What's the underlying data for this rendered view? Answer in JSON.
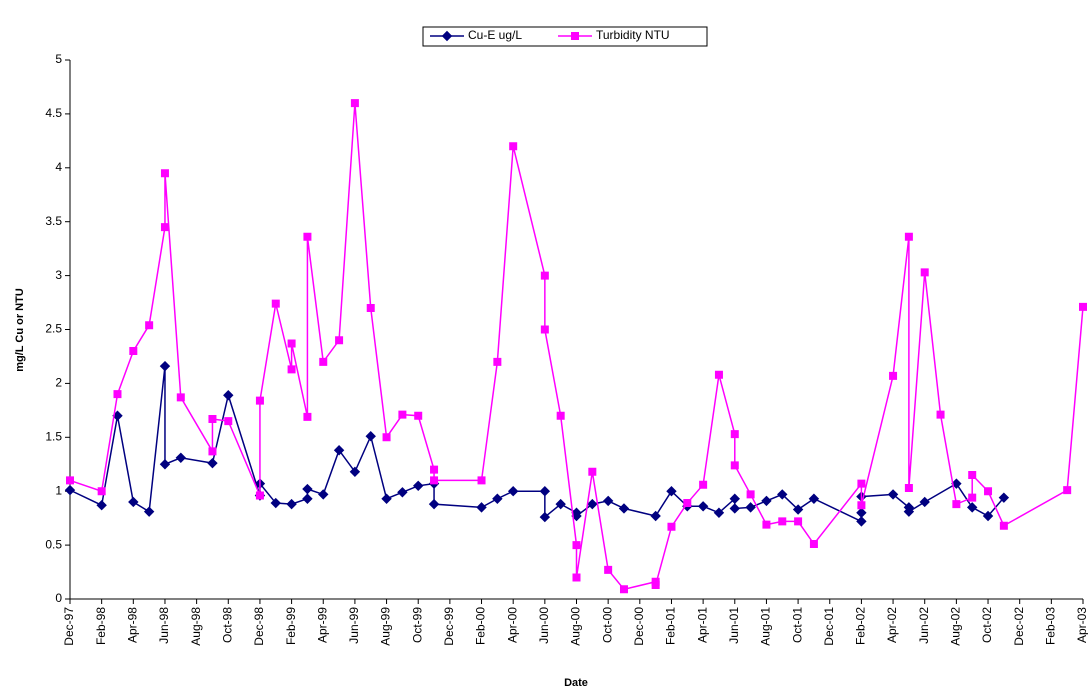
{
  "chart_data": {
    "type": "line",
    "y_label": "mg/L Cu or NTU",
    "x_label": "Date",
    "xlim": [
      "1997-12",
      "2003-04"
    ],
    "xticks": [
      {
        "value": "1997-12",
        "label": "Dec-97"
      },
      {
        "value": "1998-02",
        "label": "Feb-98"
      },
      {
        "value": "1998-04",
        "label": "Apr-98"
      },
      {
        "value": "1998-06",
        "label": "Jun-98"
      },
      {
        "value": "1998-08",
        "label": "Aug-98"
      },
      {
        "value": "1998-10",
        "label": "Oct-98"
      },
      {
        "value": "1998-12",
        "label": "Dec-98"
      },
      {
        "value": "1999-02",
        "label": "Feb-99"
      },
      {
        "value": "1999-04",
        "label": "Apr-99"
      },
      {
        "value": "1999-06",
        "label": "Jun-99"
      },
      {
        "value": "1999-08",
        "label": "Aug-99"
      },
      {
        "value": "1999-10",
        "label": "Oct-99"
      },
      {
        "value": "1999-12",
        "label": "Dec-99"
      },
      {
        "value": "2000-02",
        "label": "Feb-00"
      },
      {
        "value": "2000-04",
        "label": "Apr-00"
      },
      {
        "value": "2000-06",
        "label": "Jun-00"
      },
      {
        "value": "2000-08",
        "label": "Aug-00"
      },
      {
        "value": "2000-10",
        "label": "Oct-00"
      },
      {
        "value": "2000-12",
        "label": "Dec-00"
      },
      {
        "value": "2001-02",
        "label": "Feb-01"
      },
      {
        "value": "2001-04",
        "label": "Apr-01"
      },
      {
        "value": "2001-06",
        "label": "Jun-01"
      },
      {
        "value": "2001-08",
        "label": "Aug-01"
      },
      {
        "value": "2001-10",
        "label": "Oct-01"
      },
      {
        "value": "2001-12",
        "label": "Dec-01"
      },
      {
        "value": "2002-02",
        "label": "Feb-02"
      },
      {
        "value": "2002-04",
        "label": "Apr-02"
      },
      {
        "value": "2002-06",
        "label": "Jun-02"
      },
      {
        "value": "2002-08",
        "label": "Aug-02"
      },
      {
        "value": "2002-10",
        "label": "Oct-02"
      },
      {
        "value": "2002-12",
        "label": "Dec-02"
      },
      {
        "value": "2003-02",
        "label": "Feb-03"
      },
      {
        "value": "2003-04",
        "label": "Apr-03"
      }
    ],
    "ylim": [
      0,
      5
    ],
    "yticks": [
      0,
      0.5,
      1,
      1.5,
      2,
      2.5,
      3,
      3.5,
      4,
      4.5,
      5
    ],
    "grid": false,
    "legend": "top",
    "series": [
      {
        "name": "Cu-E ug/L",
        "color": "#000080",
        "marker": "diamond",
        "x": [
          "1997-12",
          "1998-02",
          "1998-03",
          "1998-04",
          "1998-05",
          "1998-06",
          "1998-06",
          "1998-07",
          "1998-09",
          "1998-10",
          "1998-12",
          "1998-12",
          "1999-01",
          "1999-02",
          "1999-03",
          "1999-03",
          "1999-04",
          "1999-05",
          "1999-06",
          "1999-07",
          "1999-08",
          "1999-09",
          "1999-10",
          "1999-11",
          "1999-11",
          "2000-02",
          "2000-03",
          "2000-04",
          "2000-06",
          "2000-06",
          "2000-07",
          "2000-08",
          "2000-08",
          "2000-09",
          "2000-10",
          "2000-11",
          "2001-01",
          "2001-02",
          "2001-03",
          "2001-04",
          "2001-05",
          "2001-06",
          "2001-06",
          "2001-07",
          "2001-08",
          "2001-09",
          "2001-10",
          "2001-11",
          "2002-02",
          "2002-02",
          "2002-02",
          "2002-04",
          "2002-05",
          "2002-05",
          "2002-06",
          "2002-08",
          "2002-09",
          "2002-10",
          "2002-11"
        ],
        "values": [
          1.01,
          0.87,
          1.7,
          0.9,
          0.81,
          2.16,
          1.25,
          1.31,
          1.26,
          1.89,
          0.96,
          1.07,
          0.89,
          0.88,
          0.93,
          1.02,
          0.97,
          1.38,
          1.18,
          1.51,
          0.93,
          0.99,
          1.05,
          1.07,
          0.88,
          0.85,
          0.93,
          1.0,
          1.0,
          0.76,
          0.88,
          0.8,
          0.77,
          0.88,
          0.91,
          0.84,
          0.77,
          1.0,
          0.86,
          0.86,
          0.8,
          0.93,
          0.84,
          0.85,
          0.91,
          0.97,
          0.83,
          0.93,
          0.72,
          0.8,
          0.95,
          0.97,
          0.85,
          0.81,
          0.9,
          1.07,
          0.85,
          0.77,
          0.94
        ]
      },
      {
        "name": "Turbidity NTU",
        "color": "#FF00FF",
        "marker": "square",
        "x": [
          "1997-12",
          "1998-02",
          "1998-03",
          "1998-04",
          "1998-05",
          "1998-06",
          "1998-06",
          "1998-07",
          "1998-09",
          "1998-09",
          "1998-10",
          "1998-12",
          "1998-12",
          "1999-01",
          "1999-02",
          "1999-02",
          "1999-03",
          "1999-03",
          "1999-04",
          "1999-05",
          "1999-06",
          "1999-07",
          "1999-08",
          "1999-09",
          "1999-10",
          "1999-11",
          "1999-11",
          "2000-02",
          "2000-03",
          "2000-04",
          "2000-06",
          "2000-06",
          "2000-07",
          "2000-08",
          "2000-08",
          "2000-09",
          "2000-10",
          "2000-11",
          "2001-01",
          "2001-01",
          "2001-02",
          "2001-03",
          "2001-04",
          "2001-05",
          "2001-06",
          "2001-06",
          "2001-07",
          "2001-08",
          "2001-09",
          "2001-10",
          "2001-11",
          "2002-02",
          "2002-02",
          "2002-04",
          "2002-05",
          "2002-05",
          "2002-06",
          "2002-07",
          "2002-08",
          "2002-09",
          "2002-09",
          "2002-10",
          "2002-11",
          "2003-03",
          "2003-04"
        ],
        "values": [
          1.1,
          1.0,
          1.9,
          2.3,
          2.54,
          3.45,
          3.95,
          1.87,
          1.37,
          1.67,
          1.65,
          0.96,
          1.84,
          2.74,
          2.13,
          2.37,
          1.69,
          3.36,
          2.2,
          2.4,
          4.6,
          2.7,
          1.5,
          1.71,
          1.7,
          1.2,
          1.1,
          1.1,
          2.2,
          4.2,
          3.0,
          2.5,
          1.7,
          0.5,
          0.2,
          1.18,
          0.27,
          0.09,
          0.16,
          0.13,
          0.67,
          0.89,
          1.06,
          2.08,
          1.53,
          1.24,
          0.97,
          0.69,
          0.72,
          0.72,
          0.51,
          1.07,
          0.87,
          2.07,
          3.36,
          1.03,
          3.03,
          1.71,
          0.88,
          0.94,
          1.15,
          1.0,
          0.68,
          1.01,
          2.71
        ]
      }
    ]
  }
}
